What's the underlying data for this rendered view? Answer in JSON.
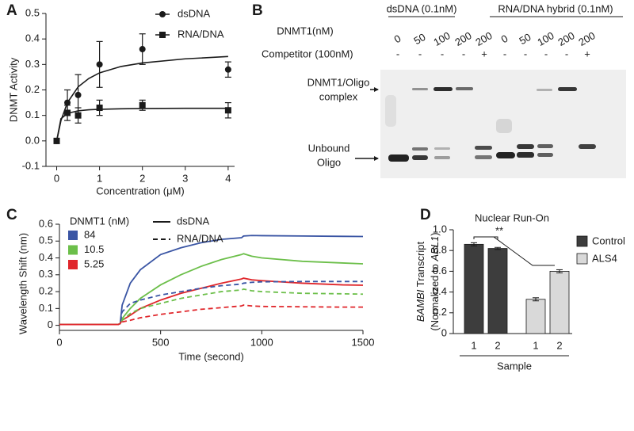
{
  "panel_labels": [
    "A",
    "B",
    "C",
    "D"
  ],
  "chart_data": [
    {
      "type": "scatter",
      "xlabel": "Concentration (μM)",
      "ylabel": "DNMT Activity",
      "xlim": [
        -0.25,
        4.15
      ],
      "ylim": [
        -0.1,
        0.5
      ],
      "xticks": [
        0,
        1,
        2,
        3,
        4
      ],
      "yticks": [
        -0.1,
        {
          "value": 0,
          "label": "0.0"
        },
        0.1,
        0.2,
        0.3,
        0.4,
        0.5
      ],
      "x": [
        0,
        0.25,
        0.5,
        1,
        2,
        4
      ],
      "series": [
        {
          "name": "dsDNA",
          "marker": "circle",
          "color": "#1a1a1a",
          "values": [
            0,
            0.15,
            0.18,
            0.3,
            0.36,
            0.28
          ],
          "errors": [
            0.01,
            0.05,
            0.08,
            0.09,
            0.06,
            0.03
          ],
          "fit_x": [
            0,
            0.1,
            0.25,
            0.5,
            0.75,
            1,
            1.5,
            2,
            3,
            4
          ],
          "fit_values": [
            0,
            0.08,
            0.15,
            0.212,
            0.245,
            0.267,
            0.292,
            0.306,
            0.322,
            0.331
          ]
        },
        {
          "name": "RNA/DNA",
          "marker": "square",
          "color": "#1a1a1a",
          "values": [
            0,
            0.11,
            0.1,
            0.13,
            0.14,
            0.12
          ],
          "errors": [
            0.01,
            0.03,
            0.03,
            0.03,
            0.02,
            0.03
          ],
          "fit_x": [
            0,
            0.1,
            0.25,
            0.5,
            0.75,
            1,
            1.5,
            2,
            3,
            4
          ],
          "fit_values": [
            0,
            0.087,
            0.108,
            0.118,
            0.122,
            0.124,
            0.126,
            0.127,
            0.128,
            0.128
          ]
        }
      ]
    },
    {
      "type": "line",
      "xlabel": "Time (second)",
      "ylabel": "Wavelength Shift (nm)",
      "xlim": [
        0,
        1500
      ],
      "ylim": [
        -0.03,
        0.6
      ],
      "xticks": [
        0,
        500,
        1000,
        1500
      ],
      "yticks": [
        0,
        0.1,
        0.2,
        0.3,
        0.4,
        0.5,
        0.6
      ],
      "legend_title": "DNMT1 (nM)",
      "concentrations": [
        {
          "label": "84",
          "color": "#3a55a4"
        },
        {
          "label": "10.5",
          "color": "#6cbf4a"
        },
        {
          "label": "5.25",
          "color": "#e0262b"
        }
      ],
      "line_styles": [
        {
          "label": "dsDNA",
          "dash": "solid"
        },
        {
          "label": "RNA/DNA",
          "dash": "dashed"
        }
      ],
      "x": [
        0,
        100,
        200,
        290,
        300,
        310,
        350,
        400,
        500,
        600,
        700,
        800,
        900,
        910,
        950,
        1000,
        1200,
        1400,
        1500
      ],
      "series": [
        {
          "color": "#3a55a4",
          "dash": "solid",
          "values": [
            0.005,
            0.005,
            0.005,
            0.005,
            0.01,
            0.12,
            0.25,
            0.33,
            0.42,
            0.46,
            0.49,
            0.51,
            0.52,
            0.53,
            0.533,
            0.532,
            0.53,
            0.528,
            0.527
          ]
        },
        {
          "color": "#6cbf4a",
          "dash": "solid",
          "values": [
            0.005,
            0.005,
            0.005,
            0.005,
            0.01,
            0.04,
            0.1,
            0.16,
            0.24,
            0.3,
            0.35,
            0.39,
            0.42,
            0.425,
            0.41,
            0.4,
            0.38,
            0.37,
            0.365
          ]
        },
        {
          "color": "#e0262b",
          "dash": "solid",
          "values": [
            0.005,
            0.005,
            0.005,
            0.005,
            0.01,
            0.03,
            0.06,
            0.1,
            0.15,
            0.19,
            0.22,
            0.25,
            0.275,
            0.28,
            0.27,
            0.265,
            0.25,
            0.24,
            0.238
          ]
        },
        {
          "color": "#3a55a4",
          "dash": "dashed",
          "values": [
            0.005,
            0.005,
            0.005,
            0.005,
            0.01,
            0.08,
            0.13,
            0.15,
            0.18,
            0.2,
            0.22,
            0.235,
            0.245,
            0.25,
            0.255,
            0.258,
            0.26,
            0.26,
            0.26
          ]
        },
        {
          "color": "#6cbf4a",
          "dash": "dashed",
          "values": [
            0.005,
            0.005,
            0.005,
            0.005,
            0.01,
            0.03,
            0.07,
            0.1,
            0.13,
            0.16,
            0.18,
            0.2,
            0.21,
            0.215,
            0.205,
            0.2,
            0.19,
            0.187,
            0.185
          ]
        },
        {
          "color": "#e0262b",
          "dash": "dashed",
          "values": [
            0.005,
            0.005,
            0.005,
            0.005,
            0.01,
            0.02,
            0.03,
            0.045,
            0.065,
            0.08,
            0.095,
            0.105,
            0.115,
            0.12,
            0.115,
            0.112,
            0.11,
            0.108,
            0.108
          ]
        }
      ]
    },
    {
      "type": "bar",
      "title": "Nuclear Run-On",
      "xlabel": "Sample",
      "ylabel": {
        "line1": [
          "BAMBI",
          " Transcript"
        ],
        "line2": [
          "(Normalized to ",
          "ABL1",
          ")"
        ]
      },
      "annotation": "**",
      "categories": [
        "1",
        "2",
        "1",
        "2"
      ],
      "ylim": [
        0,
        1
      ],
      "yticks": [
        0,
        0.2,
        0.4,
        0.6,
        0.8,
        {
          "value": 1,
          "label": "1.0"
        }
      ],
      "series": [
        {
          "name": "Control",
          "color": "#3d3d3d",
          "values": [
            0.86,
            0.82,
            null,
            null
          ],
          "errors": [
            0.015,
            0.01,
            null,
            null
          ]
        },
        {
          "name": "ALS4",
          "color": "#d9d9d9",
          "values": [
            null,
            null,
            0.33,
            0.6
          ],
          "errors": [
            null,
            null,
            0.015,
            0.015
          ]
        }
      ]
    }
  ],
  "gel": {
    "groups": [
      "dsDNA (0.1nM)",
      "RNA/DNA hybrid (0.1nM)"
    ],
    "dnmt1_label": "DNMT1(nM)",
    "competitor_label": "Competitor (100nM)",
    "dnmt1": [
      0,
      50,
      100,
      200,
      200,
      0,
      50,
      100,
      200,
      200
    ],
    "competitor": [
      "-",
      "-",
      "-",
      "-",
      "+",
      "-",
      "-",
      "-",
      "-",
      "+"
    ],
    "complex_label": [
      "DNMT1/Oligo",
      "complex"
    ],
    "unbound_label": [
      "Unbound",
      "Oligo"
    ]
  }
}
